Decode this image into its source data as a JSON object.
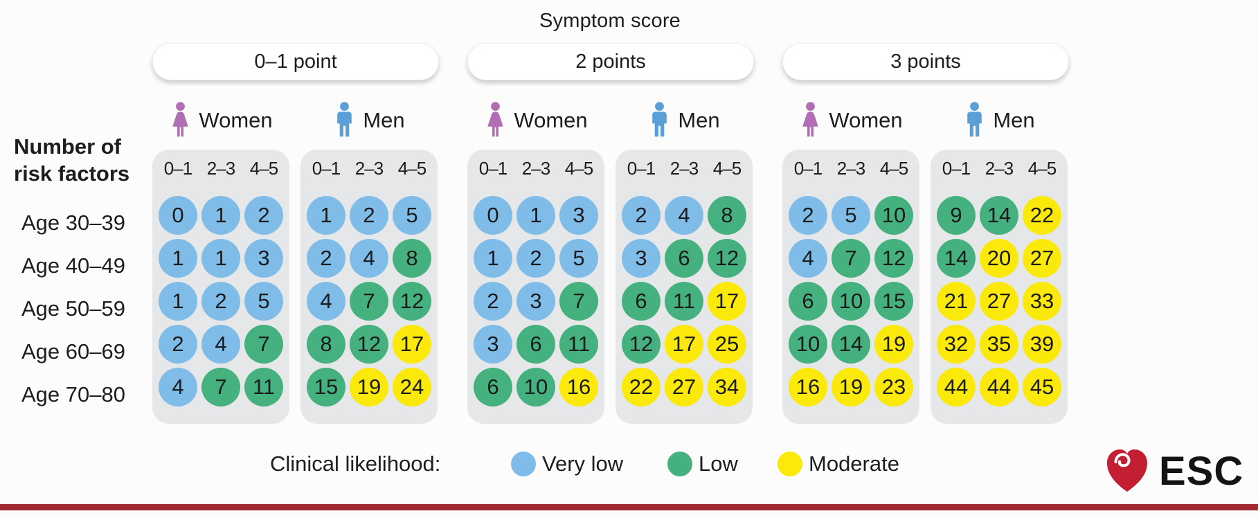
{
  "footer": {
    "logo_text": "ESC"
  },
  "colors": {
    "very_low": "#7FBCE8",
    "low": "#45B17E",
    "moderate": "#FAE90B",
    "panel_background": "#E5E7E8",
    "women_icon": "#B06FB2",
    "men_icon": "#5B9FD8",
    "esc_heart_red": "#C41E33",
    "bottom_rule": "#A02833"
  },
  "chart_data": {
    "type": "heatmap",
    "title": "Symptom score",
    "row_label_header": [
      "Number of",
      "risk factors"
    ],
    "rows": [
      "Age 30–39",
      "Age 40–49",
      "Age 50–59",
      "Age 60–69",
      "Age 70–80"
    ],
    "risk_factor_bins": [
      "0–1",
      "2–3",
      "4–5"
    ],
    "legend": {
      "label": "Clinical likelihood:",
      "levels": [
        {
          "code": "vl",
          "label": "Very low",
          "color": "#7FBCE8"
        },
        {
          "code": "lo",
          "label": "Low",
          "color": "#45B17E"
        },
        {
          "code": "mo",
          "label": "Moderate",
          "color": "#FAE90B"
        }
      ]
    },
    "groups": [
      {
        "symptom_score": "0–1 point",
        "panels": [
          {
            "sex": "Women",
            "icon": "woman-icon",
            "values": [
              [
                0,
                1,
                2
              ],
              [
                1,
                1,
                3
              ],
              [
                1,
                2,
                5
              ],
              [
                2,
                4,
                7
              ],
              [
                4,
                7,
                11
              ]
            ],
            "levels": [
              [
                "vl",
                "vl",
                "vl"
              ],
              [
                "vl",
                "vl",
                "vl"
              ],
              [
                "vl",
                "vl",
                "vl"
              ],
              [
                "vl",
                "vl",
                "lo"
              ],
              [
                "vl",
                "lo",
                "lo"
              ]
            ]
          },
          {
            "sex": "Men",
            "icon": "man-icon",
            "values": [
              [
                1,
                2,
                5
              ],
              [
                2,
                4,
                8
              ],
              [
                4,
                7,
                12
              ],
              [
                8,
                12,
                17
              ],
              [
                15,
                19,
                24
              ]
            ],
            "levels": [
              [
                "vl",
                "vl",
                "vl"
              ],
              [
                "vl",
                "vl",
                "lo"
              ],
              [
                "vl",
                "lo",
                "lo"
              ],
              [
                "lo",
                "lo",
                "mo"
              ],
              [
                "lo",
                "mo",
                "mo"
              ]
            ]
          }
        ]
      },
      {
        "symptom_score": "2 points",
        "panels": [
          {
            "sex": "Women",
            "icon": "woman-icon",
            "values": [
              [
                0,
                1,
                3
              ],
              [
                1,
                2,
                5
              ],
              [
                2,
                3,
                7
              ],
              [
                3,
                6,
                11
              ],
              [
                6,
                10,
                16
              ]
            ],
            "levels": [
              [
                "vl",
                "vl",
                "vl"
              ],
              [
                "vl",
                "vl",
                "vl"
              ],
              [
                "vl",
                "vl",
                "lo"
              ],
              [
                "vl",
                "lo",
                "lo"
              ],
              [
                "lo",
                "lo",
                "mo"
              ]
            ]
          },
          {
            "sex": "Men",
            "icon": "man-icon",
            "values": [
              [
                2,
                4,
                8
              ],
              [
                3,
                6,
                12
              ],
              [
                6,
                11,
                17
              ],
              [
                12,
                17,
                25
              ],
              [
                22,
                27,
                34
              ]
            ],
            "levels": [
              [
                "vl",
                "vl",
                "lo"
              ],
              [
                "vl",
                "lo",
                "lo"
              ],
              [
                "lo",
                "lo",
                "mo"
              ],
              [
                "lo",
                "mo",
                "mo"
              ],
              [
                "mo",
                "mo",
                "mo"
              ]
            ]
          }
        ]
      },
      {
        "symptom_score": "3 points",
        "panels": [
          {
            "sex": "Women",
            "icon": "woman-icon",
            "values": [
              [
                2,
                5,
                10
              ],
              [
                4,
                7,
                12
              ],
              [
                6,
                10,
                15
              ],
              [
                10,
                14,
                19
              ],
              [
                16,
                19,
                23
              ]
            ],
            "levels": [
              [
                "vl",
                "vl",
                "lo"
              ],
              [
                "vl",
                "lo",
                "lo"
              ],
              [
                "lo",
                "lo",
                "lo"
              ],
              [
                "lo",
                "lo",
                "mo"
              ],
              [
                "mo",
                "mo",
                "mo"
              ]
            ]
          },
          {
            "sex": "Men",
            "icon": "man-icon",
            "values": [
              [
                9,
                14,
                22
              ],
              [
                14,
                20,
                27
              ],
              [
                21,
                27,
                33
              ],
              [
                32,
                35,
                39
              ],
              [
                44,
                44,
                45
              ]
            ],
            "levels": [
              [
                "lo",
                "lo",
                "mo"
              ],
              [
                "lo",
                "mo",
                "mo"
              ],
              [
                "mo",
                "mo",
                "mo"
              ],
              [
                "mo",
                "mo",
                "mo"
              ],
              [
                "mo",
                "mo",
                "mo"
              ]
            ]
          }
        ]
      }
    ]
  }
}
